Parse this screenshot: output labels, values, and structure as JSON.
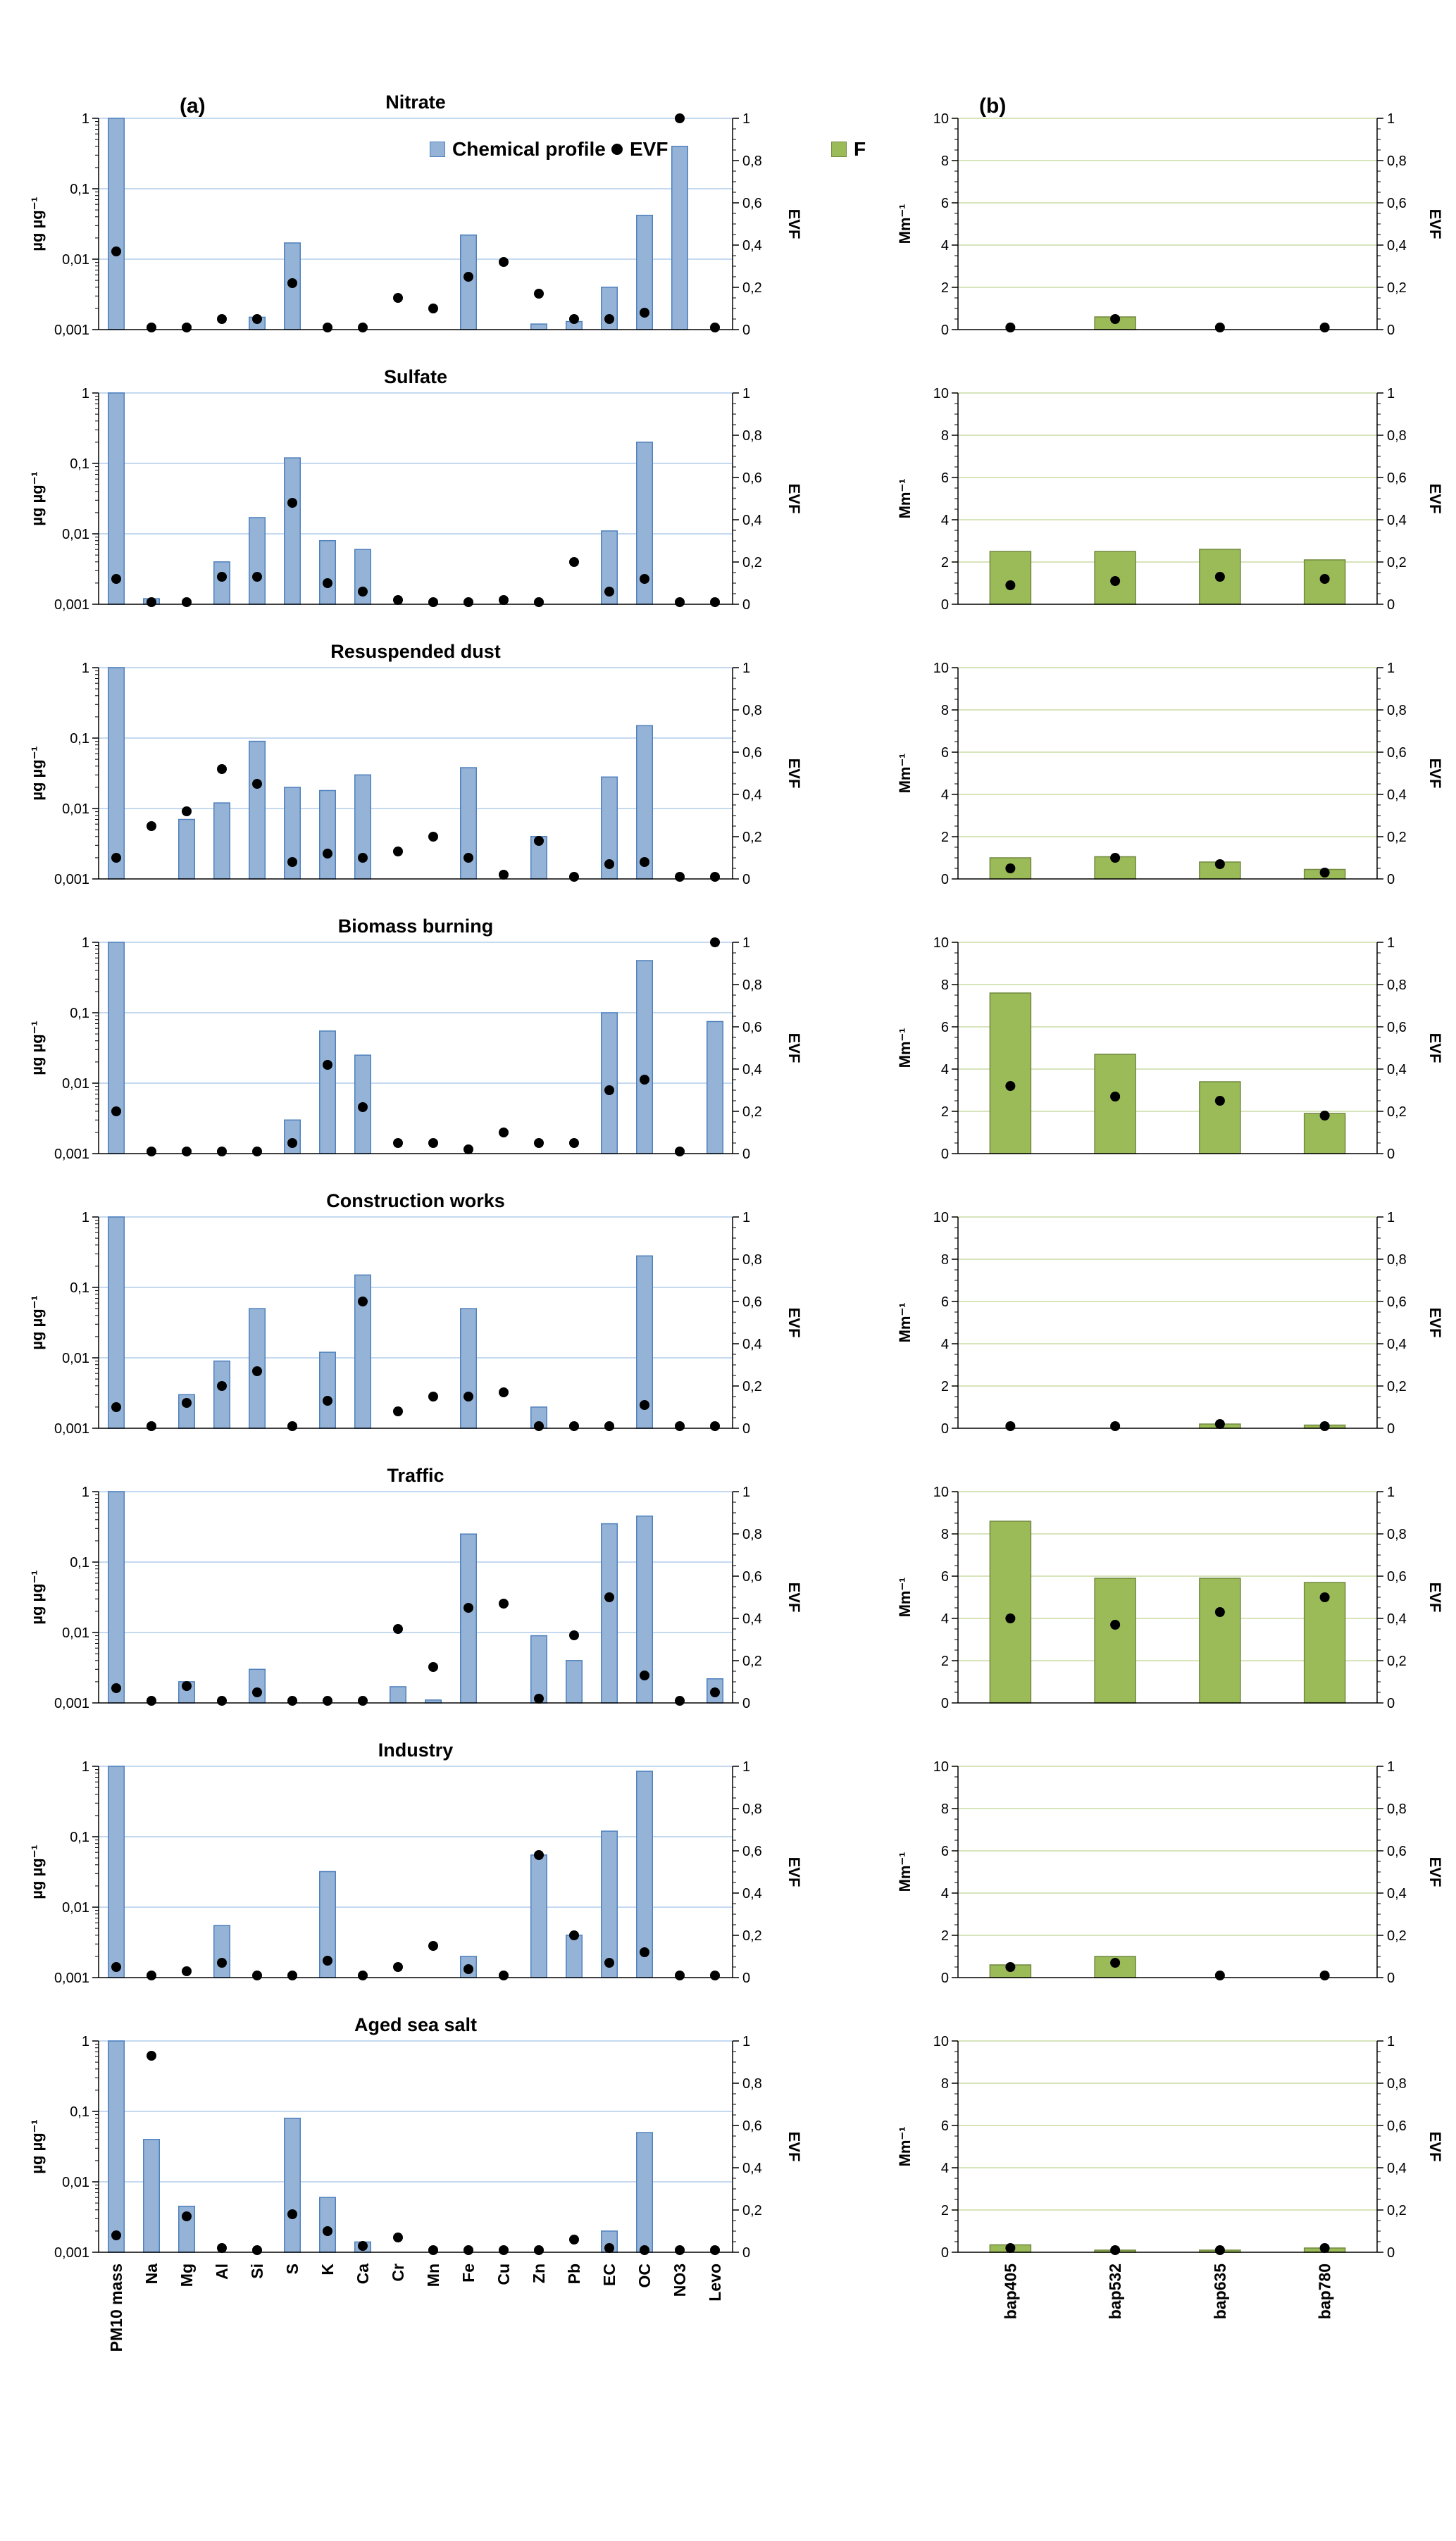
{
  "header": {
    "panel_a": "(a)",
    "panel_b": "(b)"
  },
  "legend": {
    "chemical_profile": "Chemical profile",
    "evf": "EVF",
    "f": "F"
  },
  "colors": {
    "bar_blue": "#95B3D7",
    "bar_blue_border": "#4F81BD",
    "bar_green": "#9BBB59",
    "bar_green_border": "#71893F",
    "grid_blue": "#C5D9F1",
    "grid_green": "#D7E4BC",
    "dot": "#000000",
    "axis": "#000000"
  },
  "chart_data": {
    "type": "bar",
    "overlay": "scatter",
    "shared": {
      "a_categories": [
        "PM10 mass",
        "Na",
        "Mg",
        "Al",
        "Si",
        "S",
        "K",
        "Ca",
        "Cr",
        "Mn",
        "Fe",
        "Cu",
        "Zn",
        "Pb",
        "EC",
        "OC",
        "NO3",
        "Levo"
      ],
      "b_categories": [
        "bap405",
        "bap532",
        "bap635",
        "bap780"
      ],
      "a_ylabel": "µg µg⁻¹",
      "b_ylabel": "Mm⁻¹",
      "evf_label": "EVF",
      "a_ylog_range": [
        0.001,
        1
      ],
      "b_ylim": [
        0,
        10
      ],
      "evf_ylim": [
        0,
        1
      ],
      "a_tick_labels": [
        "1",
        "0,1",
        "0,01",
        "0,001"
      ],
      "evf_tick_labels": [
        "1",
        "0,8",
        "0,6",
        "0,4",
        "0,2",
        "0"
      ],
      "b_tick_labels": [
        "10",
        "8",
        "6",
        "4",
        "2",
        "0"
      ]
    },
    "rows": [
      {
        "title": "Nitrate",
        "profile": [
          1,
          null,
          null,
          null,
          0.0015,
          0.017,
          null,
          null,
          null,
          null,
          0.022,
          null,
          0.0012,
          0.0013,
          0.004,
          0.042,
          0.4,
          null
        ],
        "evf": [
          0.37,
          0.01,
          0.01,
          0.05,
          0.05,
          0.22,
          0.01,
          0.01,
          0.15,
          0.1,
          0.25,
          0.32,
          0.17,
          0.05,
          0.05,
          0.08,
          1.0,
          0.01
        ],
        "b_bars": [
          0,
          0.6,
          0,
          0
        ],
        "b_evf": [
          0.01,
          0.05,
          0.01,
          0.01
        ]
      },
      {
        "title": "Sulfate",
        "profile": [
          1,
          0.0012,
          null,
          0.004,
          0.017,
          0.12,
          0.008,
          0.006,
          null,
          null,
          null,
          null,
          null,
          null,
          0.011,
          0.2,
          null,
          null
        ],
        "evf": [
          0.12,
          0.01,
          0.01,
          0.13,
          0.13,
          0.48,
          0.1,
          0.06,
          0.02,
          0.01,
          0.01,
          0.02,
          0.01,
          0.2,
          0.06,
          0.12,
          0.01,
          0.01
        ],
        "b_bars": [
          2.5,
          2.5,
          2.6,
          2.1
        ],
        "b_evf": [
          0.09,
          0.11,
          0.13,
          0.12
        ]
      },
      {
        "title": "Resuspended dust",
        "profile": [
          1,
          null,
          0.007,
          0.012,
          0.09,
          0.02,
          0.018,
          0.03,
          null,
          null,
          0.038,
          null,
          0.004,
          null,
          0.028,
          0.15,
          null,
          null
        ],
        "evf": [
          0.1,
          0.25,
          0.32,
          0.52,
          0.45,
          0.08,
          0.12,
          0.1,
          0.13,
          0.2,
          0.1,
          0.02,
          0.18,
          0.01,
          0.07,
          0.08,
          0.01,
          0.01
        ],
        "b_bars": [
          1.0,
          1.05,
          0.8,
          0.45
        ],
        "b_evf": [
          0.05,
          0.1,
          0.07,
          0.03
        ]
      },
      {
        "title": "Biomass burning",
        "profile": [
          1,
          null,
          null,
          null,
          null,
          0.003,
          0.055,
          0.025,
          null,
          null,
          null,
          null,
          null,
          null,
          0.1,
          0.55,
          null,
          0.075
        ],
        "evf": [
          0.2,
          0.01,
          0.01,
          0.01,
          0.01,
          0.05,
          0.42,
          0.22,
          0.05,
          0.05,
          0.02,
          0.1,
          0.05,
          0.05,
          0.3,
          0.35,
          0.01,
          1.0
        ],
        "b_bars": [
          7.6,
          4.7,
          3.4,
          1.9
        ],
        "b_evf": [
          0.32,
          0.27,
          0.25,
          0.18
        ]
      },
      {
        "title": "Construction works",
        "profile": [
          1,
          null,
          0.003,
          0.009,
          0.05,
          null,
          0.012,
          0.15,
          null,
          null,
          0.05,
          null,
          0.002,
          null,
          null,
          0.28,
          null,
          null
        ],
        "evf": [
          0.1,
          0.01,
          0.12,
          0.2,
          0.27,
          0.01,
          0.13,
          0.6,
          0.08,
          0.15,
          0.15,
          0.17,
          0.01,
          0.01,
          0.01,
          0.11,
          0.01,
          0.01
        ],
        "b_bars": [
          0,
          0,
          0.2,
          0.15
        ],
        "b_evf": [
          0.01,
          0.01,
          0.02,
          0.01
        ]
      },
      {
        "title": "Traffic",
        "profile": [
          1,
          null,
          0.002,
          null,
          0.003,
          null,
          null,
          null,
          0.0017,
          0.0011,
          0.25,
          null,
          0.009,
          0.004,
          0.35,
          0.45,
          null,
          0.0022
        ],
        "evf": [
          0.07,
          0.01,
          0.08,
          0.01,
          0.05,
          0.01,
          0.01,
          0.01,
          0.35,
          0.17,
          0.45,
          0.47,
          0.02,
          0.32,
          0.5,
          0.13,
          0.01,
          0.05
        ],
        "b_bars": [
          8.6,
          5.9,
          5.9,
          5.7
        ],
        "b_evf": [
          0.4,
          0.37,
          0.43,
          0.5
        ]
      },
      {
        "title": "Industry",
        "profile": [
          1,
          null,
          null,
          0.0055,
          null,
          null,
          0.032,
          null,
          null,
          null,
          0.002,
          null,
          0.055,
          0.004,
          0.12,
          0.85,
          null,
          null
        ],
        "evf": [
          0.05,
          0.01,
          0.03,
          0.07,
          0.01,
          0.01,
          0.08,
          0.01,
          0.05,
          0.15,
          0.04,
          0.01,
          0.58,
          0.2,
          0.07,
          0.12,
          0.01,
          0.01
        ],
        "b_bars": [
          0.6,
          1.0,
          0,
          0
        ],
        "b_evf": [
          0.05,
          0.07,
          0.01,
          0.01
        ]
      },
      {
        "title": "Aged sea salt",
        "profile": [
          1,
          0.04,
          0.0045,
          null,
          null,
          0.08,
          0.006,
          0.0014,
          null,
          null,
          null,
          null,
          null,
          null,
          0.002,
          0.05,
          null,
          null
        ],
        "evf": [
          0.08,
          0.93,
          0.17,
          0.02,
          0.01,
          0.18,
          0.1,
          0.03,
          0.07,
          0.01,
          0.01,
          0.01,
          0.01,
          0.06,
          0.02,
          0.01,
          0.01,
          0.01
        ],
        "b_bars": [
          0.35,
          0.1,
          0.1,
          0.2
        ],
        "b_evf": [
          0.02,
          0.01,
          0.01,
          0.02
        ]
      }
    ]
  }
}
